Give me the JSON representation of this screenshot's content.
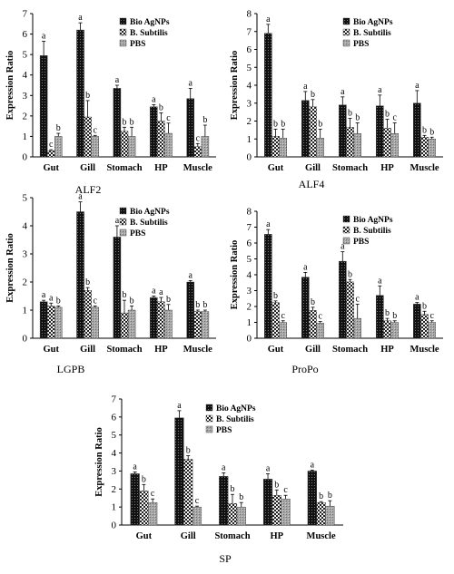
{
  "figure": {
    "series_names": [
      "Bio AgNPs",
      "B. Subtilis",
      "PBS"
    ],
    "categories": [
      "Gut",
      "Gill",
      "Stomach",
      "HP",
      "Muscle"
    ],
    "ylabel_text": "Expression Ratio",
    "colors": {
      "bar_dark": "#111111",
      "bar_mid": "#444444",
      "bar_light": "#9a9a9a",
      "axis": "#000000",
      "background": "#ffffff"
    }
  },
  "chart_data": [
    {
      "type": "bar",
      "title": "ALF2",
      "ylabel": "Expression Ratio",
      "categories": [
        "Gut",
        "Gill",
        "Stomach",
        "HP",
        "Muscle"
      ],
      "ylim": [
        0,
        7
      ],
      "yticks": [
        0,
        1,
        2,
        3,
        4,
        5,
        6,
        7
      ],
      "legend": "top-right",
      "grid": false,
      "series": [
        {
          "name": "Bio AgNPs",
          "values": [
            4.95,
            6.2,
            3.35,
            2.45,
            2.85
          ],
          "errors": [
            0.7,
            0.35,
            0.15,
            0.1,
            0.5
          ],
          "letters": [
            "a",
            "a",
            "a",
            "a",
            "a"
          ]
        },
        {
          "name": "B. Subtilis",
          "values": [
            0.3,
            1.95,
            1.25,
            1.75,
            0.5
          ],
          "errors": [
            0.05,
            0.8,
            0.2,
            0.4,
            0.15
          ],
          "letters": [
            "c",
            "b",
            "b",
            "b",
            "c"
          ]
        },
        {
          "name": "PBS",
          "values": [
            1.0,
            1.0,
            1.0,
            1.15,
            1.0
          ],
          "errors": [
            0.15,
            0.05,
            0.45,
            0.5,
            0.55
          ],
          "letters": [
            "b",
            "c",
            "b",
            "c",
            "b"
          ]
        }
      ]
    },
    {
      "type": "bar",
      "title": "ALF4",
      "ylabel": "Expression Ratio",
      "categories": [
        "Gut",
        "Gill",
        "Stomach",
        "HP",
        "Muscle"
      ],
      "ylim": [
        0,
        8
      ],
      "yticks": [
        0,
        1,
        2,
        3,
        4,
        5,
        6,
        7,
        8
      ],
      "legend": "top-right",
      "grid": false,
      "series": [
        {
          "name": "Bio AgNPs",
          "values": [
            6.9,
            3.15,
            2.9,
            2.85,
            3.0
          ],
          "errors": [
            0.5,
            0.5,
            0.45,
            0.6,
            0.7
          ],
          "letters": [
            "a",
            "a",
            "a",
            "a",
            "a"
          ]
        },
        {
          "name": "B. Subtilis",
          "values": [
            1.15,
            2.8,
            1.65,
            1.6,
            1.1
          ],
          "errors": [
            0.4,
            0.4,
            0.5,
            0.5,
            0.1
          ],
          "letters": [
            "b",
            "b",
            "b",
            "b",
            "b"
          ]
        },
        {
          "name": "PBS",
          "values": [
            1.05,
            1.05,
            1.3,
            1.3,
            1.0
          ],
          "errors": [
            0.5,
            0.5,
            0.6,
            0.6,
            0.1
          ],
          "letters": [
            "b",
            "b",
            "b",
            "c",
            "b"
          ]
        }
      ]
    },
    {
      "type": "bar",
      "title": "LGPB",
      "ylabel": "Expression Ratio",
      "categories": [
        "Gut",
        "Gill",
        "Stomach",
        "HP",
        "Muscle"
      ],
      "ylim": [
        0,
        5
      ],
      "yticks": [
        0,
        1,
        2,
        3,
        4,
        5
      ],
      "legend": "top-right",
      "grid": false,
      "series": [
        {
          "name": "Bio AgNPs",
          "values": [
            1.3,
            4.5,
            3.6,
            1.45,
            2.0
          ],
          "errors": [
            0.05,
            0.35,
            0.4,
            0.05,
            0.05
          ],
          "letters": [
            "a",
            "a",
            "a",
            "a",
            "a"
          ]
        },
        {
          "name": "B. Subtilis",
          "values": [
            1.15,
            1.7,
            0.9,
            1.3,
            0.95
          ],
          "errors": [
            0.1,
            0.1,
            0.45,
            0.15,
            0.05
          ],
          "letters": [
            "a",
            "b",
            "b",
            "a",
            "b"
          ]
        },
        {
          "name": "PBS",
          "values": [
            1.1,
            1.1,
            1.0,
            1.0,
            0.95
          ],
          "errors": [
            0.05,
            0.05,
            0.15,
            0.2,
            0.05
          ],
          "letters": [
            "b",
            "c",
            "b",
            "b",
            "b"
          ]
        }
      ]
    },
    {
      "type": "bar",
      "title": "ProPo",
      "ylabel": "Expression Ratio",
      "categories": [
        "Gut",
        "Gill",
        "Stomach",
        "HP",
        "Muscle"
      ],
      "ylim": [
        0,
        8
      ],
      "yticks": [
        0,
        1,
        2,
        3,
        4,
        5,
        6,
        7,
        8
      ],
      "legend": "top-right",
      "grid": false,
      "series": [
        {
          "name": "Bio AgNPs",
          "values": [
            6.55,
            3.85,
            4.85,
            2.7,
            2.15
          ],
          "errors": [
            0.3,
            0.3,
            0.6,
            0.6,
            0.1
          ],
          "letters": [
            "a",
            "a",
            "a",
            "a",
            "a"
          ]
        },
        {
          "name": "B. Subtilis",
          "values": [
            2.25,
            1.75,
            3.55,
            1.1,
            1.5
          ],
          "errors": [
            0.1,
            0.2,
            0.15,
            0.15,
            0.2
          ],
          "letters": [
            "b",
            "b",
            "b",
            "b",
            "b"
          ]
        },
        {
          "name": "PBS",
          "values": [
            1.0,
            0.95,
            1.25,
            1.0,
            1.0
          ],
          "errors": [
            0.1,
            0.1,
            0.9,
            0.1,
            0.1
          ],
          "letters": [
            "c",
            "c",
            "c",
            "b",
            "c"
          ]
        }
      ]
    },
    {
      "type": "bar",
      "title": "SP",
      "ylabel": "Expression Ratio",
      "categories": [
        "Gut",
        "Gill",
        "Stomach",
        "HP",
        "Muscle"
      ],
      "ylim": [
        0,
        7
      ],
      "yticks": [
        0,
        1,
        2,
        3,
        4,
        5,
        6,
        7
      ],
      "legend": "top-right",
      "grid": false,
      "series": [
        {
          "name": "Bio AgNPs",
          "values": [
            2.85,
            5.95,
            2.7,
            2.55,
            3.0
          ],
          "errors": [
            0.1,
            0.4,
            0.2,
            0.3,
            0.05
          ],
          "letters": [
            "a",
            "a",
            "a",
            "a",
            "a"
          ]
        },
        {
          "name": "B. Subtilis",
          "values": [
            1.9,
            3.65,
            1.2,
            1.65,
            1.25
          ],
          "errors": [
            0.35,
            0.2,
            0.5,
            0.3,
            0.05
          ],
          "letters": [
            "b",
            "b",
            "b",
            "b",
            "b"
          ]
        },
        {
          "name": "PBS",
          "values": [
            1.25,
            1.0,
            1.0,
            1.45,
            1.05
          ],
          "errors": [
            0.2,
            0.05,
            0.25,
            0.2,
            0.3
          ],
          "letters": [
            "c",
            "c",
            "b",
            "c",
            "b"
          ]
        }
      ]
    }
  ]
}
